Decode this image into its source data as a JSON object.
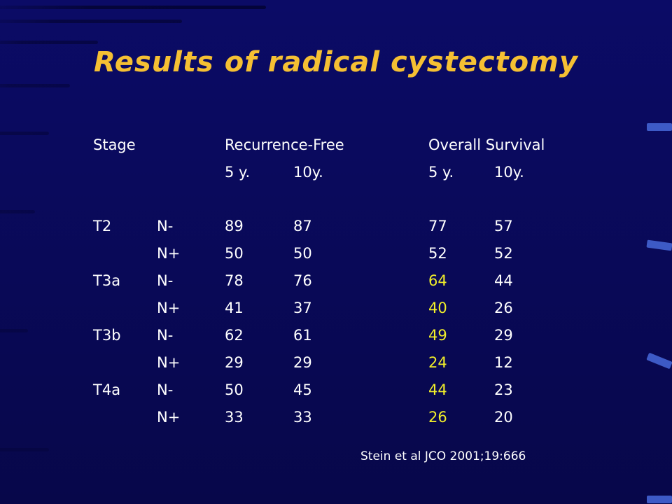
{
  "slide": {
    "title": "Results of radical cystectomy",
    "citation": "Stein et al JCO 2001;19:666",
    "accent_colors": {
      "title": "#f5c033",
      "highlight": "#f1ee2a",
      "background": "#0a0a5c"
    }
  },
  "table": {
    "headers": {
      "stage": "Stage",
      "recurrence_free": "Recurrence-Free",
      "overall_survival": "Overall Survival",
      "rf_5y": "5 y.",
      "rf_10y": "10y.",
      "os_5y": "5 y.",
      "os_10y": "10y."
    },
    "rows": [
      {
        "stage": "T2",
        "node": "N-",
        "rf5": "89",
        "rf10": "87",
        "os5": "77",
        "os10": "57",
        "os5_highlight": false
      },
      {
        "stage": "",
        "node": "N+",
        "rf5": "50",
        "rf10": "50",
        "os5": "52",
        "os10": "52",
        "os5_highlight": false
      },
      {
        "stage": "T3a",
        "node": "N-",
        "rf5": "78",
        "rf10": "76",
        "os5": "64",
        "os10": "44",
        "os5_highlight": true
      },
      {
        "stage": "",
        "node": "N+",
        "rf5": "41",
        "rf10": "37",
        "os5": "40",
        "os10": "26",
        "os5_highlight": true
      },
      {
        "stage": "T3b",
        "node": "N-",
        "rf5": "62",
        "rf10": "61",
        "os5": "49",
        "os10": "29",
        "os5_highlight": true
      },
      {
        "stage": "",
        "node": "N+",
        "rf5": "29",
        "rf10": "29",
        "os5": "24",
        "os10": "12",
        "os5_highlight": true
      },
      {
        "stage": "T4a",
        "node": "N-",
        "rf5": "50",
        "rf10": "45",
        "os5": "44",
        "os10": "23",
        "os5_highlight": true
      },
      {
        "stage": "",
        "node": "N+",
        "rf5": "33",
        "rf10": "33",
        "os5": "26",
        "os10": "20",
        "os5_highlight": true
      }
    ]
  }
}
